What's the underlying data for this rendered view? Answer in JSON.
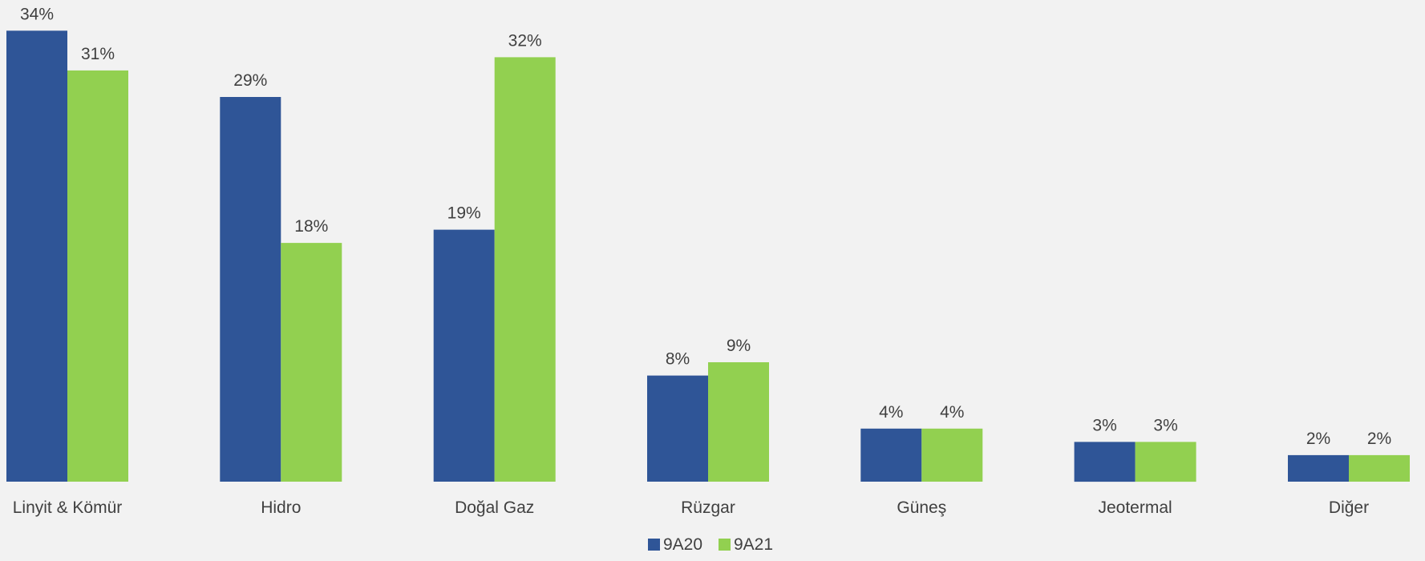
{
  "chart_data": {
    "type": "bar",
    "categories": [
      "Linyit & Kömür",
      "Hidro",
      "Doğal Gaz",
      "Rüzgar",
      "Güneş",
      "Jeotermal",
      "Diğer"
    ],
    "series": [
      {
        "name": "9A20",
        "color": "#2f5597",
        "values": [
          34,
          29,
          19,
          8,
          4,
          3,
          2
        ],
        "labels": [
          "34%",
          "29%",
          "19%",
          "8%",
          "4%",
          "3%",
          "2%"
        ]
      },
      {
        "name": "9A21",
        "color": "#92d050",
        "values": [
          31,
          18,
          32,
          9,
          4,
          3,
          2
        ],
        "labels": [
          "31%",
          "18%",
          "32%",
          "9%",
          "4%",
          "3%",
          "2%"
        ]
      }
    ],
    "value_format": "percent",
    "legend_position": "bottom",
    "grid": false,
    "title": "",
    "xlabel": "",
    "ylabel": ""
  }
}
